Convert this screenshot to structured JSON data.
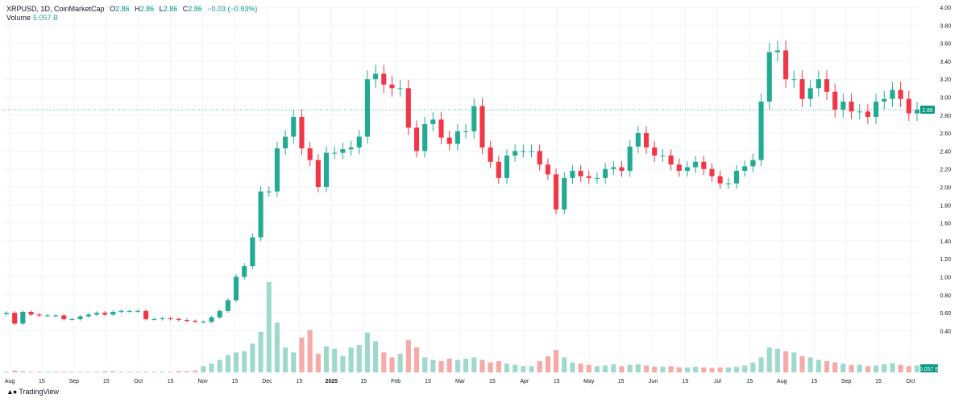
{
  "header": {
    "symbol": "XRPUSD, 1D, CoinMarketCap",
    "open_label": "O",
    "open": "2.86",
    "high_label": "H",
    "high": "2.86",
    "low_label": "L",
    "low": "2.86",
    "close_label": "C",
    "close": "2.86",
    "change": "−0.03 (−0.93%)",
    "volume_label": "Volume",
    "volume_value": "5.057 B"
  },
  "branding": {
    "text": "TradingView"
  },
  "colors": {
    "up": "#22ab94",
    "down": "#f23645",
    "vol_up": "#9fd9cc",
    "vol_down": "#f7a9a7",
    "grid": "#f0f3fa",
    "badge": "#089981"
  },
  "chart_data": {
    "type": "candlestick",
    "title": "",
    "price_axis": {
      "min": 0.0,
      "max": 4.0,
      "ticks": [
        "4.00",
        "3.80",
        "3.60",
        "3.40",
        "3.20",
        "3.00",
        "2.80",
        "2.60",
        "2.40",
        "2.20",
        "2.00",
        "1.80",
        "1.60",
        "1.40",
        "1.20",
        "1.00",
        "0.80",
        "0.60",
        "0.40"
      ]
    },
    "last_price": 2.86,
    "last_price_label": "2.86",
    "last_volume_label": "5.057 B",
    "time_axis": {
      "labels": [
        "Aug",
        "15",
        "Sep",
        "15",
        "Oct",
        "15",
        "Nov",
        "15",
        "Dec",
        "15",
        "2025",
        "15",
        "Feb",
        "15",
        "Mar",
        "15",
        "Apr",
        "15",
        "May",
        "15",
        "Jun",
        "15",
        "Jul",
        "15",
        "Aug",
        "15",
        "Sep",
        "15",
        "Oct"
      ],
      "bold": [
        "2025"
      ]
    },
    "grid": true,
    "weekly_close": [
      [
        0.6,
        0.48,
        0.61,
        0.58,
        0.57,
        0.57,
        0.57,
        0.53
      ],
      [
        0.53,
        0.56,
        0.58,
        0.6,
        0.58,
        0.61,
        0.62,
        0.62
      ],
      [
        0.62,
        0.53,
        0.53,
        0.54,
        0.53,
        0.52,
        0.51,
        0.5
      ],
      [
        0.5,
        0.55,
        0.62,
        0.74,
        1.0,
        1.12,
        1.44,
        1.95
      ],
      [
        1.95,
        2.43,
        2.56,
        2.78,
        2.43,
        2.3,
        2.0,
        2.38
      ],
      [
        2.38,
        2.42,
        2.44,
        2.56,
        3.2,
        3.26,
        3.14,
        3.1
      ],
      [
        3.1,
        2.66,
        2.4,
        2.7,
        2.75,
        2.55,
        2.48,
        2.62
      ],
      [
        2.62,
        2.9,
        2.44,
        2.28,
        2.1,
        2.35,
        2.4,
        2.4
      ],
      [
        2.4,
        2.25,
        2.14,
        1.75,
        2.1,
        2.18,
        2.12,
        2.1
      ],
      [
        2.1,
        2.2,
        2.22,
        2.18,
        2.45,
        2.6,
        2.44,
        2.35
      ],
      [
        2.35,
        2.25,
        2.18,
        2.22,
        2.28,
        2.2,
        2.12,
        2.04
      ],
      [
        2.04,
        2.18,
        2.23,
        2.3,
        2.95,
        3.5,
        3.52,
        3.2
      ],
      [
        3.2,
        2.98,
        3.1,
        3.2,
        3.06,
        2.86,
        2.95,
        2.84
      ],
      [
        2.84,
        2.78,
        2.95,
        2.98,
        3.08,
        2.98,
        2.82,
        2.86
      ]
    ],
    "volumes_billion": [
      [
        0.1,
        0.3,
        0.2,
        0.1,
        0.1,
        0.1,
        0.1,
        0.1
      ],
      [
        0.1,
        0.1,
        0.1,
        0.1,
        0.2,
        0.2,
        0.1,
        0.1
      ],
      [
        0.1,
        0.1,
        0.1,
        0.1,
        0.1,
        0.2,
        0.2,
        0.3
      ],
      [
        1.0,
        1.4,
        2.0,
        2.8,
        3.2,
        3.4,
        4.6,
        6.5
      ],
      [
        14.5,
        8.0,
        4.0,
        3.2,
        5.6,
        6.8,
        3.0,
        4.2
      ],
      [
        3.8,
        2.6,
        4.0,
        4.4,
        6.4,
        5.0,
        3.2,
        2.4
      ],
      [
        3.0,
        5.2,
        4.0,
        2.4,
        2.0,
        1.8,
        2.2,
        2.0
      ],
      [
        2.2,
        2.4,
        2.0,
        1.6,
        1.8,
        1.4,
        1.2,
        1.0
      ],
      [
        1.0,
        1.8,
        2.6,
        3.6,
        2.4,
        1.6,
        1.4,
        1.2
      ],
      [
        1.0,
        1.1,
        1.3,
        1.0,
        1.2,
        1.3,
        1.1,
        0.9
      ],
      [
        0.9,
        1.0,
        0.8,
        0.8,
        0.9,
        0.8,
        0.7,
        0.8
      ],
      [
        0.8,
        0.9,
        1.1,
        1.6,
        2.4,
        4.0,
        3.8,
        3.4
      ],
      [
        3.2,
        2.6,
        2.4,
        2.0,
        1.8,
        1.6,
        1.4,
        1.2
      ],
      [
        1.2,
        1.0,
        1.1,
        1.3,
        1.5,
        1.2,
        1.0,
        1.1
      ]
    ]
  }
}
